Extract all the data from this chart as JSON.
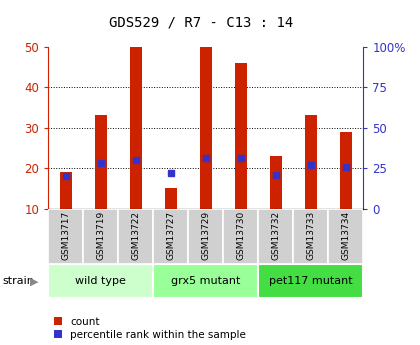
{
  "title": "GDS529 / R7 - C13 : 14",
  "samples": [
    "GSM13717",
    "GSM13719",
    "GSM13722",
    "GSM13727",
    "GSM13729",
    "GSM13730",
    "GSM13732",
    "GSM13733",
    "GSM13734"
  ],
  "bar_values": [
    19,
    33,
    50,
    15,
    50,
    46,
    23,
    33,
    29
  ],
  "blue_values": [
    20,
    28,
    30,
    22,
    31,
    31,
    21,
    27,
    26
  ],
  "bar_color": "#cc2200",
  "blue_color": "#3333cc",
  "ylim_left": [
    10,
    50
  ],
  "ylim_right": [
    0,
    100
  ],
  "yticks_left": [
    10,
    20,
    30,
    40,
    50
  ],
  "yticks_right": [
    0,
    25,
    50,
    75,
    100
  ],
  "ytick_labels_right": [
    "0",
    "25",
    "50",
    "75",
    "100%"
  ],
  "grid_lines": [
    20,
    30,
    40
  ],
  "strain_groups": [
    {
      "label": "wild type",
      "start": 0,
      "end": 3,
      "color": "#ccffcc"
    },
    {
      "label": "grx5 mutant",
      "start": 3,
      "end": 6,
      "color": "#99ff99"
    },
    {
      "label": "pet117 mutant",
      "start": 6,
      "end": 9,
      "color": "#55dd55"
    }
  ],
  "strain_label": "strain",
  "legend_count": "count",
  "legend_percentile": "percentile rank within the sample",
  "sample_box_color": "#d0d0d0",
  "bar_width": 0.35,
  "blue_marker_size": 5
}
